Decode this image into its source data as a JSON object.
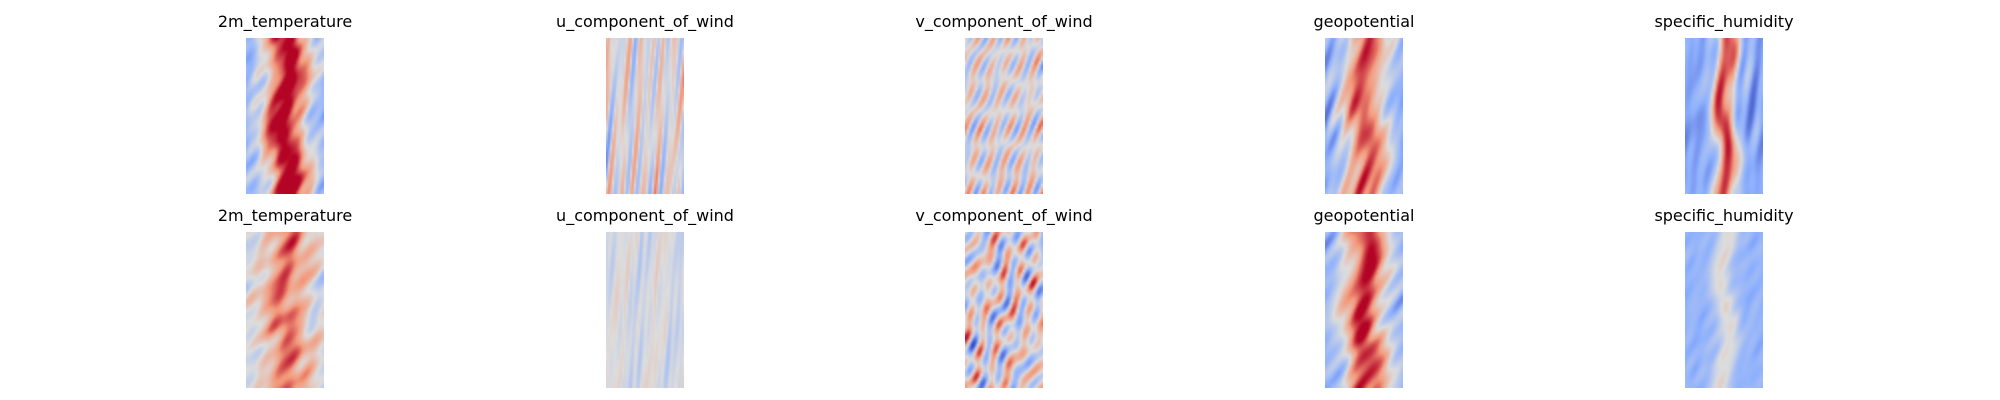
{
  "chart_data": [
    {
      "type": "heatmap",
      "title": "2m_temperature",
      "colormap": "coolwarm",
      "axes": "off",
      "row": 1,
      "pattern": "band",
      "strength": 0.95,
      "base": 0.25,
      "seed": 3
    },
    {
      "type": "heatmap",
      "title": "u_component_of_wind",
      "colormap": "coolwarm",
      "axes": "off",
      "row": 1,
      "pattern": "streaks",
      "strength": 0.75,
      "base": 0.0,
      "seed": 7
    },
    {
      "type": "heatmap",
      "title": "v_component_of_wind",
      "colormap": "coolwarm",
      "axes": "off",
      "row": 1,
      "pattern": "cells",
      "strength": 0.55,
      "base": 0.0,
      "seed": 11
    },
    {
      "type": "heatmap",
      "title": "geopotential",
      "colormap": "coolwarm",
      "axes": "off",
      "row": 1,
      "pattern": "band",
      "strength": 0.8,
      "base": 0.05,
      "seed": 17
    },
    {
      "type": "heatmap",
      "title": "specific_humidity",
      "colormap": "coolwarm",
      "axes": "off",
      "row": 1,
      "pattern": "narrow",
      "strength": 1.0,
      "base": -0.55,
      "seed": 23
    },
    {
      "type": "heatmap",
      "title": "2m_temperature",
      "colormap": "coolwarm",
      "axes": "off",
      "row": 2,
      "pattern": "band",
      "strength": 0.45,
      "base": 0.25,
      "seed": 29
    },
    {
      "type": "heatmap",
      "title": "u_component_of_wind",
      "colormap": "coolwarm",
      "axes": "off",
      "row": 2,
      "pattern": "streaks",
      "strength": 0.35,
      "base": -0.05,
      "seed": 31
    },
    {
      "type": "heatmap",
      "title": "v_component_of_wind",
      "colormap": "coolwarm",
      "axes": "off",
      "row": 2,
      "pattern": "cells",
      "strength": 0.6,
      "base": 0.0,
      "seed": 37
    },
    {
      "type": "heatmap",
      "title": "geopotential",
      "colormap": "coolwarm",
      "axes": "off",
      "row": 2,
      "pattern": "band",
      "strength": 0.85,
      "base": 0.15,
      "seed": 41
    },
    {
      "type": "heatmap",
      "title": "specific_humidity",
      "colormap": "coolwarm",
      "axes": "off",
      "row": 2,
      "pattern": "narrow",
      "strength": 0.35,
      "base": -0.45,
      "seed": 43
    }
  ]
}
